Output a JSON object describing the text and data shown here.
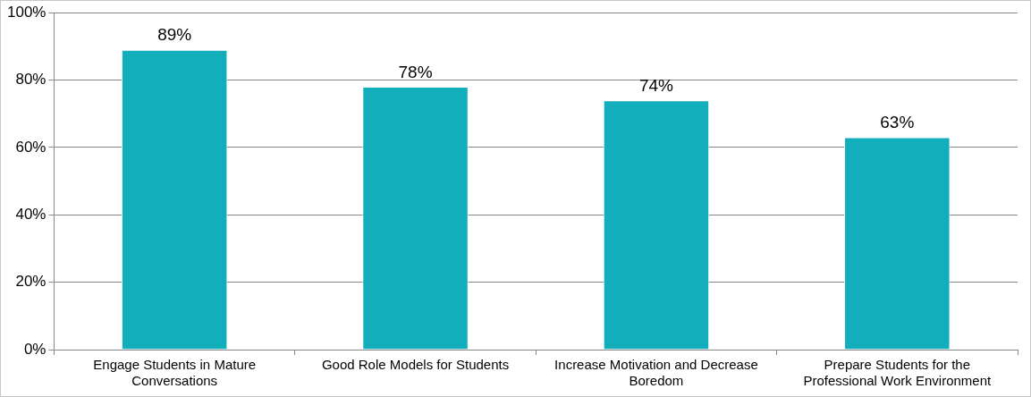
{
  "chart_data": {
    "type": "bar",
    "categories": [
      "Engage Students in Mature Conversations",
      "Good Role Models for Students",
      "Increase Motivation and Decrease Boredom",
      "Prepare Students for the Professional Work Environment"
    ],
    "values": [
      89,
      78,
      74,
      63
    ],
    "value_labels": [
      "89%",
      "78%",
      "74%",
      "63%"
    ],
    "color": "#12aebb",
    "ylim": [
      0,
      100
    ],
    "yticks": [
      {
        "value": 0,
        "label": "0%"
      },
      {
        "value": 20,
        "label": "20%"
      },
      {
        "value": 40,
        "label": "40%"
      },
      {
        "value": 60,
        "label": "60%"
      },
      {
        "value": 80,
        "label": "80%"
      },
      {
        "value": 100,
        "label": "100%"
      }
    ],
    "grid": "y",
    "legend": false
  }
}
